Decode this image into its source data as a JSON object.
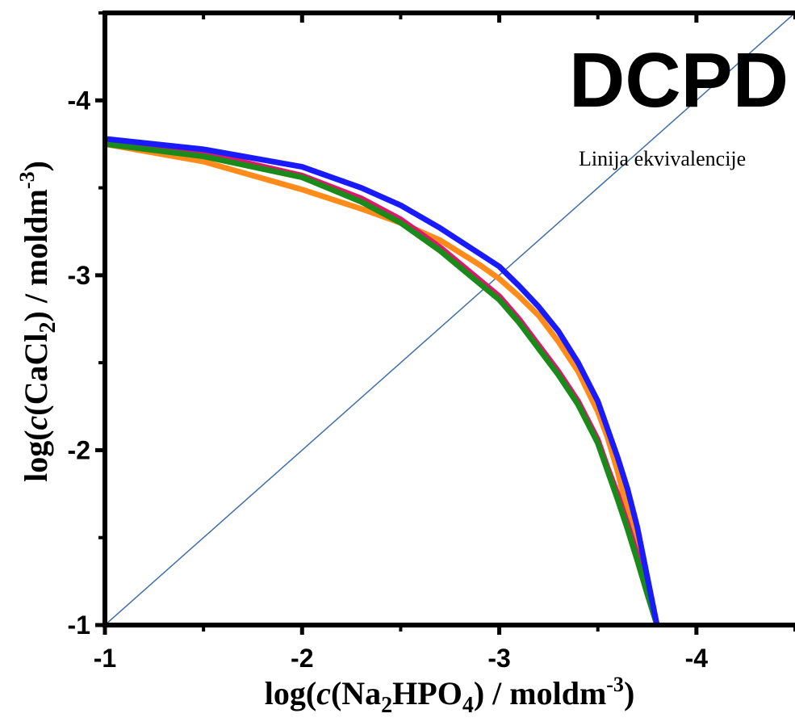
{
  "chart_data": {
    "type": "line",
    "title": "DCPD",
    "xlabel": {
      "prefix": "log(",
      "italic": "c",
      "mid1": "(Na",
      "sub1": "2",
      "mid2": "HPO",
      "sub2": "4",
      "mid3": ") / moldm",
      "sup": "-3",
      "suffix": ")"
    },
    "ylabel": {
      "prefix": "log(",
      "italic": "c",
      "mid1": "(CaCl",
      "sub1": "2",
      "mid2": ") / moldm",
      "sup": "-3",
      "suffix": ")"
    },
    "xlim": [
      -1,
      -4.5
    ],
    "ylim": [
      -1,
      -4.5
    ],
    "x_ticks": [
      "-1",
      "-2",
      "-3",
      "-4"
    ],
    "y_ticks": [
      "-1",
      "-2",
      "-3",
      "-4"
    ],
    "x_tick_values": [
      -1,
      -2,
      -3,
      -4
    ],
    "y_tick_values": [
      -1,
      -2,
      -3,
      -4
    ],
    "annotation": "Linija ekvivalencije",
    "reference_line": {
      "x": [
        -1,
        -4.5
      ],
      "y": [
        -1,
        -4.5
      ],
      "color": "#3f6fa8"
    },
    "series": [
      {
        "color": "#ff8c1a",
        "x": [
          -1.0,
          -1.5,
          -2.0,
          -2.3,
          -2.5,
          -2.7,
          -2.9,
          -3.0,
          -3.1,
          -3.2,
          -3.3,
          -3.4,
          -3.5,
          -3.55,
          -3.6,
          -3.65,
          -3.7,
          -3.75,
          -3.8
        ],
        "y": [
          -3.75,
          -3.65,
          -3.49,
          -3.38,
          -3.3,
          -3.2,
          -3.06,
          -2.98,
          -2.88,
          -2.77,
          -2.62,
          -2.45,
          -2.22,
          -2.07,
          -1.88,
          -1.65,
          -1.45,
          -1.2,
          -1.0
        ]
      },
      {
        "color": "#e0156e",
        "x": [
          -1.0,
          -1.5,
          -2.0,
          -2.3,
          -2.5,
          -2.7,
          -2.85,
          -3.0,
          -3.1,
          -3.2,
          -3.3,
          -3.4,
          -3.5,
          -3.55,
          -3.6,
          -3.65,
          -3.7,
          -3.75,
          -3.8
        ],
        "y": [
          -3.76,
          -3.7,
          -3.57,
          -3.44,
          -3.32,
          -3.16,
          -3.02,
          -2.88,
          -2.75,
          -2.6,
          -2.45,
          -2.28,
          -2.06,
          -1.9,
          -1.75,
          -1.58,
          -1.4,
          -1.2,
          -1.0
        ]
      },
      {
        "color": "#1a8a1a",
        "x": [
          -1.0,
          -1.5,
          -2.0,
          -2.3,
          -2.5,
          -2.7,
          -2.85,
          -3.0,
          -3.1,
          -3.2,
          -3.3,
          -3.4,
          -3.5,
          -3.55,
          -3.6,
          -3.65,
          -3.7,
          -3.75,
          -3.8
        ],
        "y": [
          -3.75,
          -3.68,
          -3.56,
          -3.42,
          -3.3,
          -3.14,
          -3.0,
          -2.86,
          -2.73,
          -2.58,
          -2.43,
          -2.26,
          -2.04,
          -1.88,
          -1.72,
          -1.55,
          -1.37,
          -1.18,
          -1.0
        ]
      },
      {
        "color": "#1a1aff",
        "x": [
          -1.0,
          -1.5,
          -2.0,
          -2.3,
          -2.5,
          -2.7,
          -2.85,
          -3.0,
          -3.1,
          -3.2,
          -3.3,
          -3.4,
          -3.5,
          -3.55,
          -3.6,
          -3.65,
          -3.7,
          -3.75,
          -3.8
        ],
        "y": [
          -3.78,
          -3.72,
          -3.62,
          -3.5,
          -3.4,
          -3.27,
          -3.16,
          -3.05,
          -2.94,
          -2.82,
          -2.68,
          -2.5,
          -2.28,
          -2.12,
          -1.96,
          -1.78,
          -1.56,
          -1.28,
          -1.0
        ]
      }
    ]
  }
}
